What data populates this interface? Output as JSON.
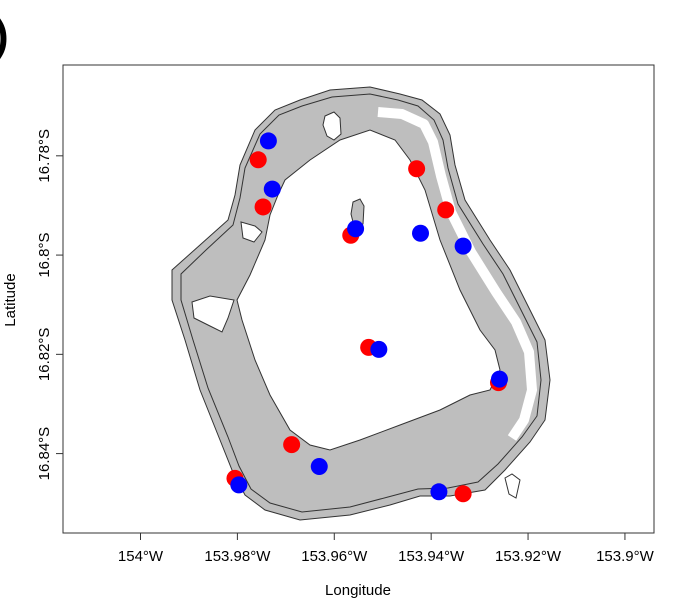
{
  "panel_label": ")",
  "chart_data": {
    "type": "scatter",
    "xlabel": "Longitude",
    "ylabel": "Latitude",
    "x_ticks": [
      {
        "value": 154.0,
        "label": "154°W"
      },
      {
        "value": 153.98,
        "label": "153.98°W"
      },
      {
        "value": 153.96,
        "label": "153.96°W"
      },
      {
        "value": 153.94,
        "label": "153.94°W"
      },
      {
        "value": 153.92,
        "label": "153.92°W"
      },
      {
        "value": 153.9,
        "label": "153.9°W"
      }
    ],
    "y_ticks": [
      {
        "value": 16.78,
        "label": "16.78°S"
      },
      {
        "value": 16.8,
        "label": "16.8°S"
      },
      {
        "value": 16.82,
        "label": "16.82°S"
      },
      {
        "value": 16.84,
        "label": "16.84°S"
      }
    ],
    "xlim": [
      154.016,
      153.894
    ],
    "ylim": [
      16.7617,
      16.856
    ],
    "grid": false,
    "land_color": "#bebebe",
    "series": [
      {
        "color": "#ff0000",
        "points": [
          {
            "lon": 153.9757,
            "lat": 16.7808
          },
          {
            "lon": 153.943,
            "lat": 16.7826
          },
          {
            "lon": 153.9747,
            "lat": 16.7903
          },
          {
            "lon": 153.937,
            "lat": 16.7909
          },
          {
            "lon": 153.9566,
            "lat": 16.796
          },
          {
            "lon": 153.9529,
            "lat": 16.8186
          },
          {
            "lon": 153.9261,
            "lat": 16.8257
          },
          {
            "lon": 153.9688,
            "lat": 16.8382
          },
          {
            "lon": 153.9805,
            "lat": 16.845
          },
          {
            "lon": 153.9334,
            "lat": 16.8481
          }
        ]
      },
      {
        "color": "#0000ff",
        "points": [
          {
            "lon": 153.9736,
            "lat": 16.777
          },
          {
            "lon": 153.9728,
            "lat": 16.7867
          },
          {
            "lon": 153.9556,
            "lat": 16.7947
          },
          {
            "lon": 153.9422,
            "lat": 16.7956
          },
          {
            "lon": 153.9334,
            "lat": 16.7982
          },
          {
            "lon": 153.9508,
            "lat": 16.819
          },
          {
            "lon": 153.9259,
            "lat": 16.825
          },
          {
            "lon": 153.9631,
            "lat": 16.8426
          },
          {
            "lon": 153.9797,
            "lat": 16.8463
          },
          {
            "lon": 153.9384,
            "lat": 16.8477
          }
        ]
      }
    ]
  }
}
